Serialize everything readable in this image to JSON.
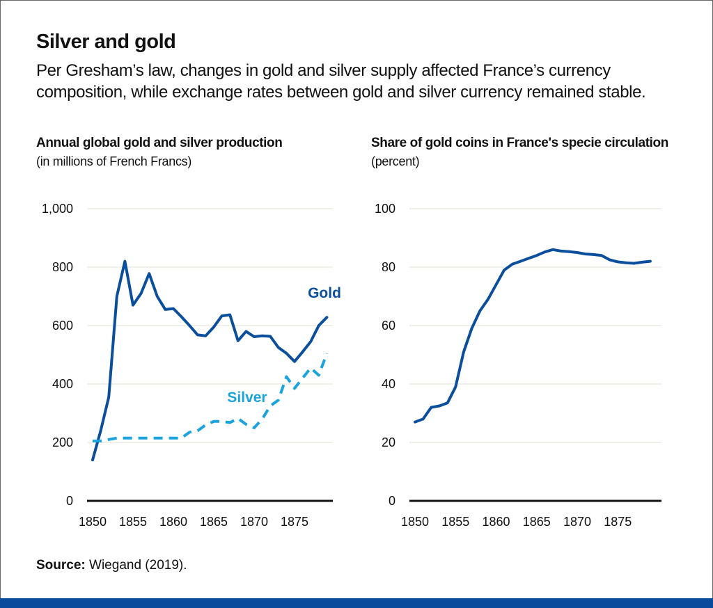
{
  "title": "Silver and gold",
  "subtitle": "Per Gresham’s law, changes in gold and silver supply affected France’s currency composition, while exchange rates between gold and silver currency remained stable.",
  "source_label": "Source:",
  "source_text": " Wiegand (2019).",
  "colors": {
    "gold": "#0b4f9c",
    "silver": "#1aa3dc",
    "grid": "#ecebe0",
    "bottom_bar": "#0a4a9c"
  },
  "chart_data": [
    {
      "type": "line",
      "title": "Annual global gold and silver production",
      "subtitle": "(in millions  of French Francs)",
      "ylim": [
        0,
        1000
      ],
      "yticks": [
        0,
        200,
        400,
        600,
        800,
        1000
      ],
      "ytick_labels": [
        "0",
        "200",
        "400",
        "600",
        "800",
        "1,000"
      ],
      "xticks": [
        1850,
        1855,
        1860,
        1865,
        1870,
        1875
      ],
      "grid": true,
      "x": [
        1850,
        1851,
        1852,
        1853,
        1854,
        1855,
        1856,
        1857,
        1858,
        1859,
        1860,
        1861,
        1862,
        1863,
        1864,
        1865,
        1866,
        1867,
        1868,
        1869,
        1870,
        1871,
        1872,
        1873,
        1874,
        1875,
        1876,
        1877,
        1878,
        1879
      ],
      "series": [
        {
          "name": "Gold",
          "style": "solid",
          "values": [
            140,
            240,
            355,
            700,
            820,
            670,
            710,
            778,
            700,
            655,
            658,
            630,
            600,
            568,
            565,
            595,
            633,
            637,
            548,
            580,
            562,
            565,
            563,
            525,
            505,
            477,
            510,
            545,
            600,
            628
          ]
        },
        {
          "name": "Silver",
          "style": "dashed",
          "values": [
            205,
            205,
            210,
            215,
            215,
            215,
            215,
            215,
            215,
            215,
            215,
            215,
            235,
            240,
            260,
            272,
            272,
            268,
            282,
            262,
            250,
            280,
            325,
            345,
            425,
            385,
            420,
            455,
            430,
            505
          ]
        }
      ]
    },
    {
      "type": "line",
      "title": "Share of gold coins in France's specie circulation",
      "subtitle": "(percent)",
      "ylim": [
        0,
        100
      ],
      "yticks": [
        0,
        20,
        40,
        60,
        80,
        100
      ],
      "ytick_labels": [
        "0",
        "20",
        "40",
        "60",
        "80",
        "100"
      ],
      "xticks": [
        1850,
        1855,
        1860,
        1865,
        1870,
        1875
      ],
      "grid": true,
      "x": [
        1850,
        1851,
        1852,
        1853,
        1854,
        1855,
        1856,
        1857,
        1858,
        1859,
        1860,
        1861,
        1862,
        1863,
        1864,
        1865,
        1866,
        1867,
        1868,
        1869,
        1870,
        1871,
        1872,
        1873,
        1874,
        1875,
        1876,
        1877,
        1878,
        1879
      ],
      "series": [
        {
          "style": "solid",
          "values": [
            27,
            28,
            32,
            32.5,
            33.5,
            39,
            51,
            59,
            65,
            69,
            74,
            79,
            81,
            82,
            83,
            84,
            85.2,
            86,
            85.5,
            85.3,
            85,
            84.5,
            84.3,
            84,
            82.5,
            81.8,
            81.5,
            81.3,
            81.7,
            82
          ]
        }
      ]
    }
  ]
}
